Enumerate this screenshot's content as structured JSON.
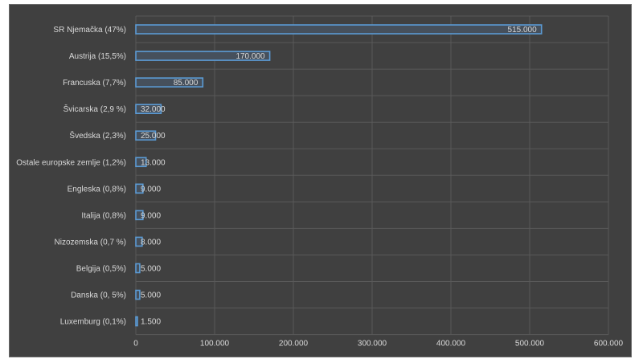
{
  "colors": {
    "plot_bg": "#404040",
    "grid": "#595959",
    "bar_fill": "#46505c",
    "bar_stroke": "#5b9bd5",
    "text": "#d9d9d9"
  },
  "chart_data": {
    "type": "bar",
    "orientation": "horizontal",
    "title": "",
    "xlabel": "",
    "ylabel": "",
    "categories": [
      "SR Njemačka  (47%)",
      "Austrija (15,5%)",
      "Francuska (7,7%)",
      "Švicarska  (2,9 %)",
      "Švedska (2,3%)",
      "Ostale europske zemlje (1,2%)",
      "Engleska  (0,8%)",
      "Italija (0,8%)",
      "Nizozemska (0,7 %)",
      "Belgija (0,5%)",
      "Danska (0, 5%)",
      "Luxemburg (0,1%)"
    ],
    "values": [
      515000,
      170000,
      85000,
      32000,
      25000,
      13000,
      9000,
      9000,
      8000,
      5000,
      5000,
      1500
    ],
    "value_labels": [
      "515.000",
      "170.000",
      "85.000",
      "32.000",
      "25.000",
      "13.000",
      "9.000",
      "9.000",
      "8.000",
      "5.000",
      "5.000",
      "1.500"
    ],
    "xlim": [
      0,
      600000
    ],
    "xticks": [
      0,
      100000,
      200000,
      300000,
      400000,
      500000,
      600000
    ],
    "xtick_labels": [
      "0",
      "100.000",
      "200.000",
      "300.000",
      "400.000",
      "500.000",
      "600.000"
    ],
    "grid": true,
    "legend": "none"
  }
}
